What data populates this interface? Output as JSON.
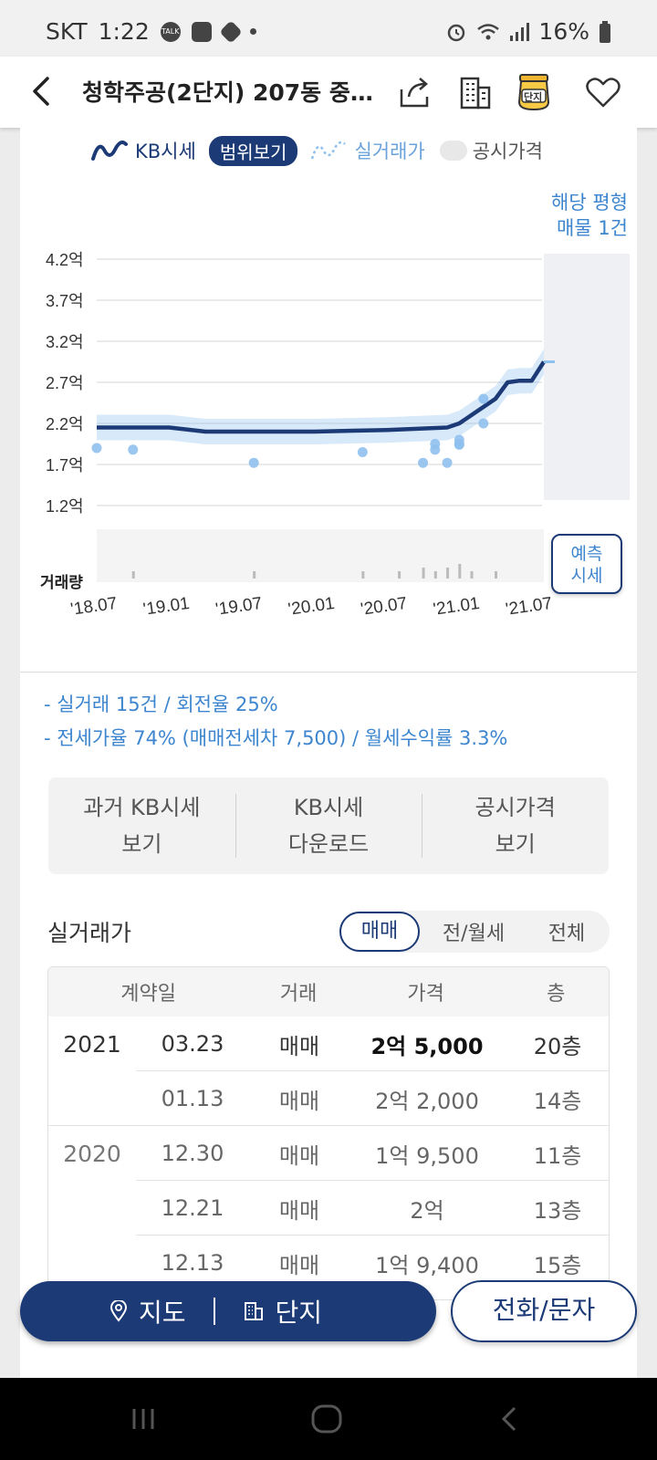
{
  "status_bar": {
    "carrier": "SKT",
    "time": "1:22",
    "battery": "16%",
    "icons": [
      "talk-icon",
      "image-icon",
      "cube-icon",
      "dot-icon",
      "alarm-icon",
      "wifi-icon",
      "signal-icon",
      "battery-icon"
    ]
  },
  "header": {
    "title": "청학주공(2단지) 207동 중…",
    "danji_badge": "단지",
    "icons": [
      "back-icon",
      "share-icon",
      "building-icon",
      "danji-icon",
      "heart-icon"
    ]
  },
  "legend": {
    "kb": "KB시세",
    "range": "범위보기",
    "real": "실거래가",
    "public": "공시가격"
  },
  "listing": {
    "line1": "해당 평형",
    "line2": "매물 1건"
  },
  "chart_data": {
    "type": "line",
    "y_ticks": [
      "4.2억",
      "3.7억",
      "3.2억",
      "2.7억",
      "2.2억",
      "1.7억",
      "1.2억"
    ],
    "ylim": [
      1.2,
      4.2
    ],
    "x_ticks": [
      "'18.07",
      "'19.01",
      "'19.07",
      "'20.01",
      "'20.07",
      "'21.01",
      "'21.07"
    ],
    "volume_label": "거래량",
    "series": [
      {
        "name": "KB시세",
        "x": [
          "2018-07",
          "2019-01",
          "2019-04",
          "2019-07",
          "2020-01",
          "2020-07",
          "2020-12",
          "2021-01",
          "2021-02",
          "2021-04",
          "2021-05",
          "2021-06",
          "2021-07",
          "2021-08"
        ],
        "y": [
          2.15,
          2.15,
          2.1,
          2.1,
          2.1,
          2.12,
          2.15,
          2.2,
          2.3,
          2.5,
          2.7,
          2.72,
          2.72,
          2.95
        ]
      }
    ],
    "real_transactions": {
      "x": [
        "2018-07",
        "2018-10",
        "2019-08",
        "2020-05",
        "2020-10",
        "2020-11",
        "2020-11",
        "2020-12",
        "2021-01",
        "2021-01",
        "2021-01",
        "2021-03",
        "2021-03"
      ],
      "y": [
        1.9,
        1.88,
        1.72,
        1.85,
        1.72,
        1.88,
        1.95,
        1.72,
        1.94,
        1.95,
        2.0,
        2.2,
        2.5
      ]
    },
    "volume": {
      "x": [
        "2018-10",
        "2019-08",
        "2020-05",
        "2020-08",
        "2020-10",
        "2020-11",
        "2020-12",
        "2021-01",
        "2021-02",
        "2021-04"
      ],
      "v": [
        1,
        1,
        1,
        1,
        2,
        1,
        2,
        3,
        1,
        1
      ]
    }
  },
  "forecast": {
    "line1": "예측",
    "line2": "시세"
  },
  "stats": {
    "line1": "- 실거래 15건 / 회전율 25%",
    "line2": "- 전세가율 74% (매매전세차 7,500) / 월세수익률 3.3%"
  },
  "buttons": [
    {
      "l1": "과거 KB시세",
      "l2": "보기"
    },
    {
      "l1": "KB시세",
      "l2": "다운로드"
    },
    {
      "l1": "공시가격",
      "l2": "보기"
    }
  ],
  "transactions": {
    "title": "실거래가",
    "tabs": [
      "매매",
      "전/월세",
      "전체"
    ],
    "headers": [
      "계약일",
      "거래",
      "가격",
      "층"
    ],
    "rows": [
      {
        "year": "2021",
        "date": "03.23",
        "type": "매매",
        "price": "2억 5,000",
        "floor": "20층"
      },
      {
        "year": "",
        "date": "01.13",
        "type": "매매",
        "price": "2억 2,000",
        "floor": "14층"
      },
      {
        "year": "2020",
        "date": "12.30",
        "type": "매매",
        "price": "1억 9,500",
        "floor": "11층"
      },
      {
        "year": "",
        "date": "12.21",
        "type": "매매",
        "price": "2억",
        "floor": "13층"
      },
      {
        "year": "",
        "date": "12.13",
        "type": "매매",
        "price": "1억 9,400",
        "floor": "15층"
      }
    ]
  },
  "bottom": {
    "map": "지도",
    "danji": "단지",
    "call": "전화/문자"
  },
  "colors": {
    "primary": "#1c3a76",
    "accent": "#3d86cf",
    "light": "#8fc0ee"
  }
}
